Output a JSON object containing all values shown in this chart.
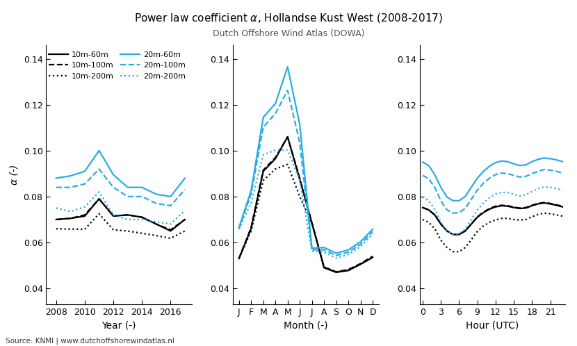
{
  "title_start": "Power law coefficient ",
  "title_end": ", Hollandse Kust West (2008-2017)",
  "subtitle": "Dutch Offshore Wind Atlas (DOWA)",
  "ylabel": "α (-)",
  "source": "Source: KNMI | www.dutchoffshorewindatlas.nl",
  "ylim": [
    0.033,
    0.146
  ],
  "yticks": [
    0.04,
    0.06,
    0.08,
    0.1,
    0.12,
    0.14
  ],
  "panel1": {
    "xlabel": "Year (-)",
    "xticks": [
      2008,
      2010,
      2012,
      2014,
      2016
    ],
    "xticklabels": [
      "2008",
      "2010",
      "2012",
      "2014",
      "2016"
    ],
    "xlim": [
      2007.3,
      2017.5
    ],
    "series": {
      "black_solid": [
        0.07,
        0.0705,
        0.0715,
        0.079,
        0.0715,
        0.072,
        0.071,
        0.068,
        0.065,
        0.07
      ],
      "black_dashed": [
        0.07,
        0.0705,
        0.072,
        0.079,
        0.0715,
        0.072,
        0.071,
        0.068,
        0.0655,
        0.07
      ],
      "black_dotted": [
        0.066,
        0.0658,
        0.0658,
        0.0725,
        0.0655,
        0.065,
        0.064,
        0.063,
        0.0618,
        0.065
      ],
      "cyan_solid": [
        0.088,
        0.089,
        0.091,
        0.1,
        0.0895,
        0.084,
        0.084,
        0.081,
        0.08,
        0.088
      ],
      "cyan_dashed": [
        0.084,
        0.084,
        0.0855,
        0.092,
        0.084,
        0.08,
        0.08,
        0.077,
        0.076,
        0.083
      ],
      "cyan_dotted": [
        0.075,
        0.0735,
        0.0755,
        0.082,
        0.072,
        0.07,
        0.07,
        0.069,
        0.068,
        0.074
      ]
    },
    "x": [
      2008,
      2009,
      2010,
      2011,
      2012,
      2013,
      2014,
      2015,
      2016,
      2017
    ]
  },
  "panel2": {
    "xlabel": "Month (-)",
    "xticks": [
      0,
      1,
      2,
      3,
      4,
      5,
      6,
      7,
      8,
      9,
      10,
      11
    ],
    "xticklabels": [
      "J",
      "F",
      "M",
      "A",
      "M",
      "J",
      "J",
      "A",
      "S",
      "O",
      "N",
      "D"
    ],
    "xlim": [
      -0.5,
      11.5
    ],
    "series": {
      "black_solid": [
        0.053,
        0.066,
        0.091,
        0.0965,
        0.106,
        0.0875,
        0.0685,
        0.049,
        0.047,
        0.0478,
        0.0505,
        0.0535
      ],
      "black_dashed": [
        0.053,
        0.0665,
        0.0915,
        0.097,
        0.106,
        0.088,
        0.0685,
        0.0493,
        0.0472,
        0.0482,
        0.0508,
        0.054
      ],
      "black_dotted": [
        0.053,
        0.065,
        0.087,
        0.092,
        0.094,
        0.08,
        0.0685,
        0.0493,
        0.0472,
        0.048,
        0.0505,
        0.0535
      ],
      "cyan_solid": [
        0.0665,
        0.0825,
        0.1145,
        0.1205,
        0.1365,
        0.1115,
        0.0575,
        0.0578,
        0.0553,
        0.0568,
        0.0603,
        0.0658
      ],
      "cyan_dashed": [
        0.066,
        0.0812,
        0.1102,
        0.1162,
        0.1262,
        0.1035,
        0.0568,
        0.0568,
        0.0543,
        0.0558,
        0.0592,
        0.0648
      ],
      "cyan_dotted": [
        0.0658,
        0.0772,
        0.0982,
        0.1002,
        0.1002,
        0.0872,
        0.0562,
        0.0558,
        0.0532,
        0.0548,
        0.0582,
        0.0638
      ]
    },
    "x": [
      0,
      1,
      2,
      3,
      4,
      5,
      6,
      7,
      8,
      9,
      10,
      11
    ]
  },
  "panel3": {
    "xlabel": "Hour (UTC)",
    "xticks": [
      0,
      3,
      6,
      9,
      12,
      15,
      18,
      21
    ],
    "xticklabels": [
      "0",
      "3",
      "6",
      "9",
      "12",
      "15",
      "18",
      "21"
    ],
    "xlim": [
      -0.5,
      23.5
    ],
    "series": {
      "black_solid": [
        0.0752,
        0.0742,
        0.072,
        0.068,
        0.065,
        0.0635,
        0.0635,
        0.065,
        0.068,
        0.071,
        0.073,
        0.0745,
        0.0755,
        0.076,
        0.0758,
        0.0752,
        0.0748,
        0.075,
        0.076,
        0.0768,
        0.0772,
        0.0768,
        0.0762,
        0.0755
      ],
      "black_dashed": [
        0.0752,
        0.0742,
        0.072,
        0.068,
        0.065,
        0.0635,
        0.0635,
        0.065,
        0.068,
        0.0712,
        0.0732,
        0.0748,
        0.0758,
        0.0762,
        0.076,
        0.0754,
        0.075,
        0.0752,
        0.0762,
        0.077,
        0.0774,
        0.077,
        0.0764,
        0.0758
      ],
      "black_dotted": [
        0.07,
        0.0688,
        0.066,
        0.061,
        0.0578,
        0.056,
        0.056,
        0.0578,
        0.0612,
        0.0648,
        0.0672,
        0.0688,
        0.0698,
        0.0705,
        0.0705,
        0.07,
        0.0698,
        0.07,
        0.0712,
        0.0722,
        0.0728,
        0.0725,
        0.072,
        0.0715
      ],
      "cyan_solid": [
        0.095,
        0.0935,
        0.0895,
        0.084,
        0.0798,
        0.0782,
        0.0782,
        0.08,
        0.084,
        0.088,
        0.091,
        0.0932,
        0.0948,
        0.0955,
        0.0952,
        0.0942,
        0.0935,
        0.0938,
        0.0952,
        0.0962,
        0.0968,
        0.0965,
        0.096,
        0.0952
      ],
      "cyan_dashed": [
        0.0892,
        0.0878,
        0.084,
        0.0782,
        0.0742,
        0.0728,
        0.073,
        0.0748,
        0.0788,
        0.0828,
        0.0858,
        0.088,
        0.0896,
        0.0902,
        0.09,
        0.0892,
        0.0885,
        0.0888,
        0.09,
        0.091,
        0.0918,
        0.0915,
        0.091,
        0.0902
      ],
      "cyan_dotted": [
        0.0798,
        0.0782,
        0.0745,
        0.0688,
        0.0648,
        0.0635,
        0.0638,
        0.0658,
        0.07,
        0.0742,
        0.0772,
        0.0795,
        0.081,
        0.0818,
        0.0818,
        0.081,
        0.0802,
        0.0808,
        0.0822,
        0.0835,
        0.0842,
        0.084,
        0.0835,
        0.0828
      ]
    },
    "x": [
      0,
      1,
      2,
      3,
      4,
      5,
      6,
      7,
      8,
      9,
      10,
      11,
      12,
      13,
      14,
      15,
      16,
      17,
      18,
      19,
      20,
      21,
      22,
      23
    ]
  },
  "colors": {
    "black": "#000000",
    "cyan": "#29ABE2"
  },
  "legend": {
    "entries": [
      {
        "label": "10m-60m",
        "color": "#000000",
        "ls": "solid"
      },
      {
        "label": "10m-100m",
        "color": "#000000",
        "ls": "dashed"
      },
      {
        "label": "10m-200m",
        "color": "#000000",
        "ls": "dotted"
      },
      {
        "label": "20m-60m",
        "color": "#29ABE2",
        "ls": "solid"
      },
      {
        "label": "20m-100m",
        "color": "#29ABE2",
        "ls": "dashed"
      },
      {
        "label": "20m-200m",
        "color": "#29ABE2",
        "ls": "dotted"
      }
    ]
  }
}
